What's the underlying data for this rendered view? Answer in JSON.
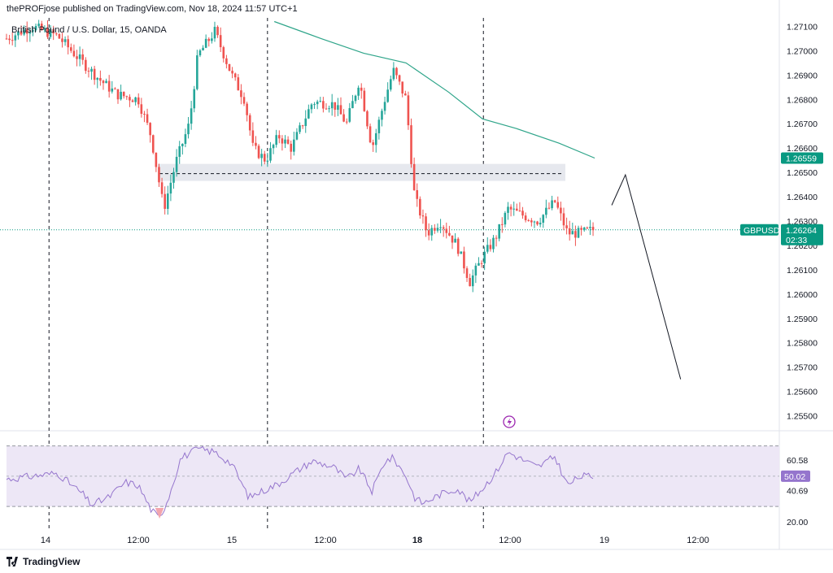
{
  "header": {
    "attribution": "thePROFjose published on TradingView.com, Nov 18, 2024 11:57 UTC+1"
  },
  "footer": {
    "brand": "TradingView",
    "icon": "tradingview-logo-icon"
  },
  "colors": {
    "up": "#26a69a",
    "down": "#ef5350",
    "ma": "#2fa58a",
    "price_tag": "#089981",
    "rsi": "#9575cd",
    "rsi_band": "#ede7f6",
    "box": "#e6e8ee"
  },
  "chart_data": [
    {
      "type": "candlestick",
      "title": "British Pound / U.S. Dollar, 15, OANDA",
      "x_ticks": [
        "14",
        "12:00",
        "15",
        "12:00",
        "18",
        "12:00",
        "19",
        "12:00"
      ],
      "y_ticks": [
        "1.27100",
        "1.27000",
        "1.26900",
        "1.26800",
        "1.26700",
        "1.26600",
        "1.26500",
        "1.26400",
        "1.26300",
        "1.26200",
        "1.26100",
        "1.26000",
        "1.25900",
        "1.25800",
        "1.25700",
        "1.25600",
        "1.25500"
      ],
      "ylim": [
        1.25445,
        1.27135
      ],
      "symbol": "GBPUSD",
      "last_price": "1.26264",
      "countdown": "02:33",
      "ma_last": "1.26559",
      "supply_zone": {
        "from": 1.26465,
        "to": 1.26535,
        "level": 1.26495
      },
      "projection": [
        {
          "t": 0.712,
          "price": 1.26365
        },
        {
          "t": 0.728,
          "price": 1.2649
        },
        {
          "t": 0.793,
          "price": 1.2565
        }
      ],
      "session_lines_t": [
        0.05,
        0.307,
        0.561
      ],
      "anchors": [
        {
          "t": 0.0,
          "price": 1.2705
        },
        {
          "t": 0.03,
          "price": 1.271
        },
        {
          "t": 0.06,
          "price": 1.2706
        },
        {
          "t": 0.09,
          "price": 1.2695
        },
        {
          "t": 0.11,
          "price": 1.2688
        },
        {
          "t": 0.13,
          "price": 1.2682
        },
        {
          "t": 0.155,
          "price": 1.268
        },
        {
          "t": 0.17,
          "price": 1.2665
        },
        {
          "t": 0.185,
          "price": 1.2635
        },
        {
          "t": 0.2,
          "price": 1.2655
        },
        {
          "t": 0.215,
          "price": 1.267
        },
        {
          "t": 0.225,
          "price": 1.2698
        },
        {
          "t": 0.245,
          "price": 1.2708
        },
        {
          "t": 0.265,
          "price": 1.269
        },
        {
          "t": 0.28,
          "price": 1.268
        },
        {
          "t": 0.29,
          "price": 1.266
        },
        {
          "t": 0.305,
          "price": 1.2655
        },
        {
          "t": 0.32,
          "price": 1.2665
        },
        {
          "t": 0.335,
          "price": 1.266
        },
        {
          "t": 0.36,
          "price": 1.2679
        },
        {
          "t": 0.385,
          "price": 1.2678
        },
        {
          "t": 0.4,
          "price": 1.267
        },
        {
          "t": 0.415,
          "price": 1.2688
        },
        {
          "t": 0.43,
          "price": 1.266
        },
        {
          "t": 0.445,
          "price": 1.268
        },
        {
          "t": 0.455,
          "price": 1.2692
        },
        {
          "t": 0.47,
          "price": 1.268
        },
        {
          "t": 0.48,
          "price": 1.264
        },
        {
          "t": 0.495,
          "price": 1.2625
        },
        {
          "t": 0.51,
          "price": 1.263
        },
        {
          "t": 0.53,
          "price": 1.262
        },
        {
          "t": 0.545,
          "price": 1.2605
        },
        {
          "t": 0.56,
          "price": 1.2615
        },
        {
          "t": 0.575,
          "price": 1.2623
        },
        {
          "t": 0.59,
          "price": 1.2635
        },
        {
          "t": 0.61,
          "price": 1.2632
        },
        {
          "t": 0.625,
          "price": 1.263
        },
        {
          "t": 0.645,
          "price": 1.2638
        },
        {
          "t": 0.66,
          "price": 1.2625
        },
        {
          "t": 0.675,
          "price": 1.2625
        },
        {
          "t": 0.69,
          "price": 1.26264
        }
      ],
      "ma_points": [
        {
          "t": 0.315,
          "price": 1.2712
        },
        {
          "t": 0.37,
          "price": 1.2705
        },
        {
          "t": 0.42,
          "price": 1.2699
        },
        {
          "t": 0.47,
          "price": 1.2695
        },
        {
          "t": 0.52,
          "price": 1.2683
        },
        {
          "t": 0.56,
          "price": 1.2672
        },
        {
          "t": 0.6,
          "price": 1.2668
        },
        {
          "t": 0.65,
          "price": 1.2662
        },
        {
          "t": 0.692,
          "price": 1.26559
        }
      ]
    },
    {
      "type": "line",
      "title": "RSI",
      "y_ticks": [
        "60.58",
        "40.69",
        "20.00"
      ],
      "ylim": [
        14,
        80
      ],
      "last_value": "50.02",
      "upper_band": 70,
      "lower_band": 30,
      "middle": 50,
      "anchors": [
        {
          "t": 0.0,
          "v": 48
        },
        {
          "t": 0.03,
          "v": 50
        },
        {
          "t": 0.06,
          "v": 52
        },
        {
          "t": 0.09,
          "v": 38
        },
        {
          "t": 0.1,
          "v": 31
        },
        {
          "t": 0.12,
          "v": 36
        },
        {
          "t": 0.14,
          "v": 46
        },
        {
          "t": 0.155,
          "v": 44
        },
        {
          "t": 0.17,
          "v": 28
        },
        {
          "t": 0.18,
          "v": 22
        },
        {
          "t": 0.19,
          "v": 35
        },
        {
          "t": 0.205,
          "v": 62
        },
        {
          "t": 0.225,
          "v": 68
        },
        {
          "t": 0.245,
          "v": 66
        },
        {
          "t": 0.265,
          "v": 58
        },
        {
          "t": 0.285,
          "v": 36
        },
        {
          "t": 0.3,
          "v": 40
        },
        {
          "t": 0.32,
          "v": 45
        },
        {
          "t": 0.34,
          "v": 53
        },
        {
          "t": 0.36,
          "v": 60
        },
        {
          "t": 0.385,
          "v": 56
        },
        {
          "t": 0.4,
          "v": 48
        },
        {
          "t": 0.415,
          "v": 55
        },
        {
          "t": 0.43,
          "v": 40
        },
        {
          "t": 0.445,
          "v": 60
        },
        {
          "t": 0.455,
          "v": 62
        },
        {
          "t": 0.47,
          "v": 50
        },
        {
          "t": 0.48,
          "v": 36
        },
        {
          "t": 0.49,
          "v": 32
        },
        {
          "t": 0.51,
          "v": 38
        },
        {
          "t": 0.53,
          "v": 42
        },
        {
          "t": 0.545,
          "v": 33
        },
        {
          "t": 0.56,
          "v": 42
        },
        {
          "t": 0.575,
          "v": 52
        },
        {
          "t": 0.59,
          "v": 66
        },
        {
          "t": 0.61,
          "v": 60
        },
        {
          "t": 0.625,
          "v": 56
        },
        {
          "t": 0.645,
          "v": 63
        },
        {
          "t": 0.66,
          "v": 44
        },
        {
          "t": 0.675,
          "v": 50
        },
        {
          "t": 0.69,
          "v": 50
        }
      ]
    }
  ]
}
